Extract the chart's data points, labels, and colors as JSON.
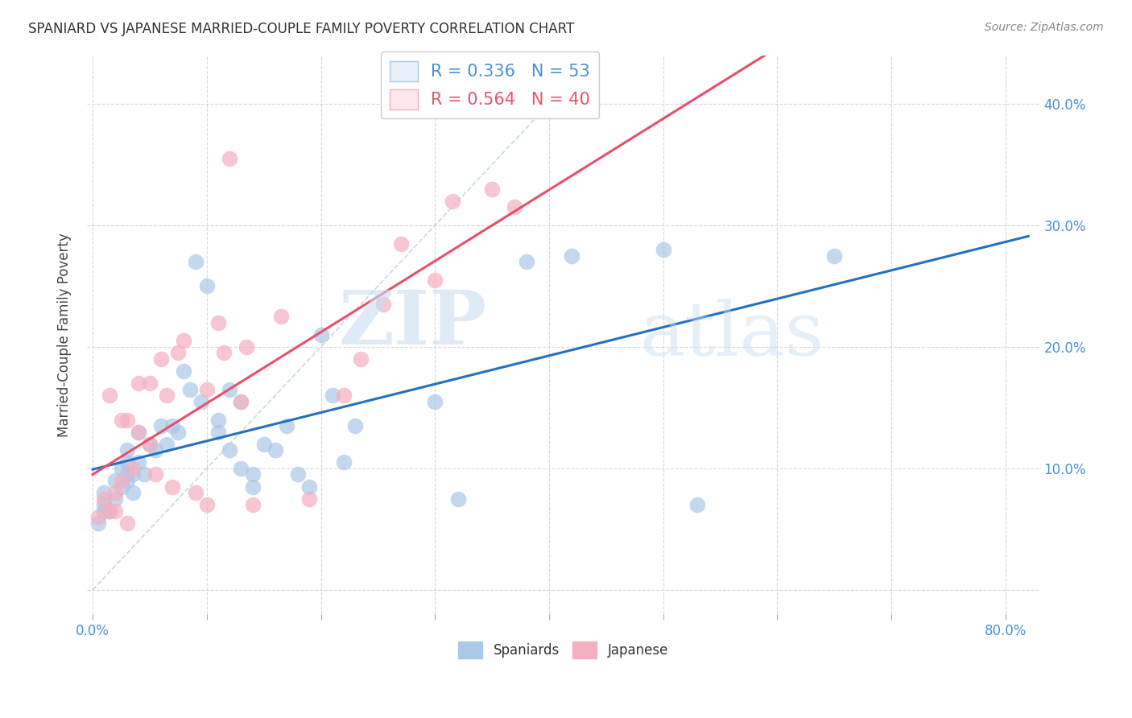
{
  "title": "SPANIARD VS JAPANESE MARRIED-COUPLE FAMILY POVERTY CORRELATION CHART",
  "source": "Source: ZipAtlas.com",
  "ylabel": "Married-Couple Family Poverty",
  "ylim": [
    -0.02,
    0.44
  ],
  "xlim": [
    -0.005,
    0.83
  ],
  "ytick_vals": [
    0.0,
    0.1,
    0.2,
    0.3,
    0.4
  ],
  "ytick_right_labels": [
    "",
    "10.0%",
    "20.0%",
    "30.0%",
    "40.0%"
  ],
  "xtick_vals": [
    0.0,
    0.1,
    0.2,
    0.3,
    0.4,
    0.5,
    0.6,
    0.7,
    0.8
  ],
  "xtick_labels": [
    "0.0%",
    "",
    "",
    "",
    "",
    "",
    "",
    "",
    "80.0%"
  ],
  "spaniard_color": "#aac8e8",
  "japanese_color": "#f5afc0",
  "spaniard_line_color": "#2470c0",
  "japanese_line_color": "#e8506a",
  "diagonal_color": "#c0d4e8",
  "R_spaniard": 0.336,
  "N_spaniard": 53,
  "R_japanese": 0.564,
  "N_japanese": 40,
  "spaniard_x": [
    0.005,
    0.01,
    0.01,
    0.01,
    0.015,
    0.02,
    0.02,
    0.025,
    0.025,
    0.03,
    0.03,
    0.03,
    0.03,
    0.035,
    0.035,
    0.04,
    0.04,
    0.045,
    0.05,
    0.055,
    0.06,
    0.065,
    0.07,
    0.075,
    0.08,
    0.085,
    0.09,
    0.095,
    0.1,
    0.11,
    0.11,
    0.12,
    0.12,
    0.13,
    0.13,
    0.14,
    0.14,
    0.15,
    0.16,
    0.17,
    0.18,
    0.19,
    0.2,
    0.21,
    0.22,
    0.23,
    0.3,
    0.32,
    0.38,
    0.42,
    0.5,
    0.53,
    0.65
  ],
  "spaniard_y": [
    0.055,
    0.07,
    0.065,
    0.08,
    0.065,
    0.09,
    0.075,
    0.1,
    0.085,
    0.095,
    0.105,
    0.115,
    0.09,
    0.08,
    0.095,
    0.13,
    0.105,
    0.095,
    0.12,
    0.115,
    0.135,
    0.12,
    0.135,
    0.13,
    0.18,
    0.165,
    0.27,
    0.155,
    0.25,
    0.13,
    0.14,
    0.165,
    0.115,
    0.1,
    0.155,
    0.095,
    0.085,
    0.12,
    0.115,
    0.135,
    0.095,
    0.085,
    0.21,
    0.16,
    0.105,
    0.135,
    0.155,
    0.075,
    0.27,
    0.275,
    0.28,
    0.07,
    0.275
  ],
  "japanese_x": [
    0.005,
    0.01,
    0.015,
    0.015,
    0.02,
    0.02,
    0.025,
    0.025,
    0.03,
    0.03,
    0.035,
    0.04,
    0.04,
    0.05,
    0.05,
    0.055,
    0.06,
    0.065,
    0.07,
    0.075,
    0.08,
    0.09,
    0.1,
    0.1,
    0.11,
    0.115,
    0.12,
    0.13,
    0.135,
    0.14,
    0.165,
    0.19,
    0.22,
    0.235,
    0.255,
    0.27,
    0.3,
    0.315,
    0.35,
    0.37
  ],
  "japanese_y": [
    0.06,
    0.075,
    0.065,
    0.16,
    0.08,
    0.065,
    0.14,
    0.09,
    0.055,
    0.14,
    0.1,
    0.17,
    0.13,
    0.12,
    0.17,
    0.095,
    0.19,
    0.16,
    0.085,
    0.195,
    0.205,
    0.08,
    0.165,
    0.07,
    0.22,
    0.195,
    0.355,
    0.155,
    0.2,
    0.07,
    0.225,
    0.075,
    0.16,
    0.19,
    0.235,
    0.285,
    0.255,
    0.32,
    0.33,
    0.315
  ],
  "watermark_zip": "ZIP",
  "watermark_atlas": "atlas",
  "background_color": "#ffffff",
  "grid_color": "#d8d8d8",
  "legend_box_color": "#e8f0f8",
  "legend_box2_color": "#fde8ec"
}
